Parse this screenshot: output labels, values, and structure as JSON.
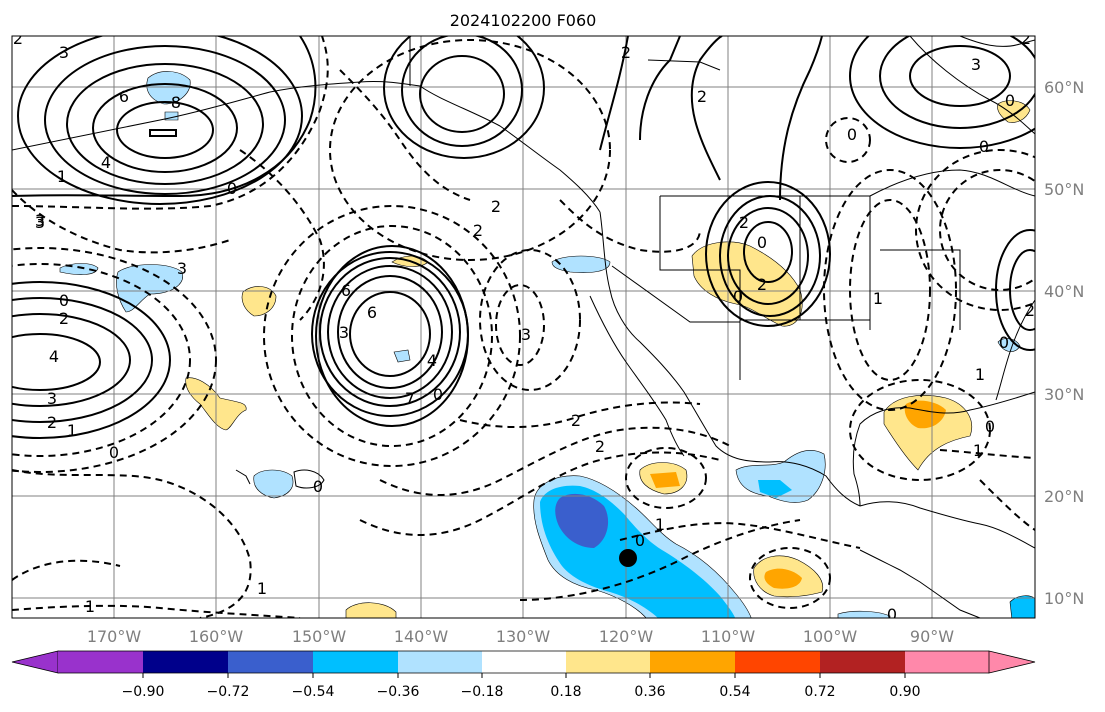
{
  "title": "2024102200 F060",
  "lat_labels": [
    "60°N",
    "50°N",
    "40°N",
    "30°N",
    "20°N",
    "10°N"
  ],
  "lon_labels": [
    "170°W",
    "160°W",
    "150°W",
    "140°W",
    "130°W",
    "120°W",
    "110°W",
    "100°W",
    "90°W"
  ],
  "colorbar": {
    "ticks": [
      "−0.90",
      "−0.72",
      "−0.54",
      "−0.36",
      "−0.18",
      "0.18",
      "0.36",
      "0.54",
      "0.72",
      "0.90"
    ],
    "colors": [
      "#9932cc",
      "#00008b",
      "#3a5fcd",
      "#00bfff",
      "#b0e2ff",
      "#ffffff",
      "#ffe68c",
      "#ffa500",
      "#ff4500",
      "#b22222",
      "#ff88aa"
    ]
  },
  "contour_labels": {
    "l1": "2",
    "l2": "3",
    "l3": "6",
    "l4": "8",
    "l5": "4",
    "l6": "1",
    "l7": "0",
    "l8": "3",
    "l9": "2",
    "l10": "2",
    "l11": "2",
    "l12": "2",
    "l13": "2",
    "l14": "3",
    "l15": "6",
    "l16": "0",
    "l17": "2",
    "l18": "4",
    "l19": "3",
    "l20": "2",
    "l21": "1",
    "l22": "0",
    "l23": "3",
    "l24": "6",
    "l25": "7",
    "l26": "4",
    "l27": "0",
    "l28": "3",
    "l29": "2",
    "l30": "2",
    "l31": "1",
    "l32": "0",
    "l33": "0",
    "l34": "1",
    "l35": "0",
    "l36": "2",
    "l37": "0",
    "l38": "0",
    "l39": "1",
    "l40": "3",
    "l41": "0",
    "l42": "1",
    "l43": "0",
    "l44": "2",
    "l45": "0",
    "l46": "3",
    "l47": "1",
    "l48": "0",
    "l49": "1",
    "l50": "0",
    "l51": "2"
  },
  "marker_color": "#000000"
}
